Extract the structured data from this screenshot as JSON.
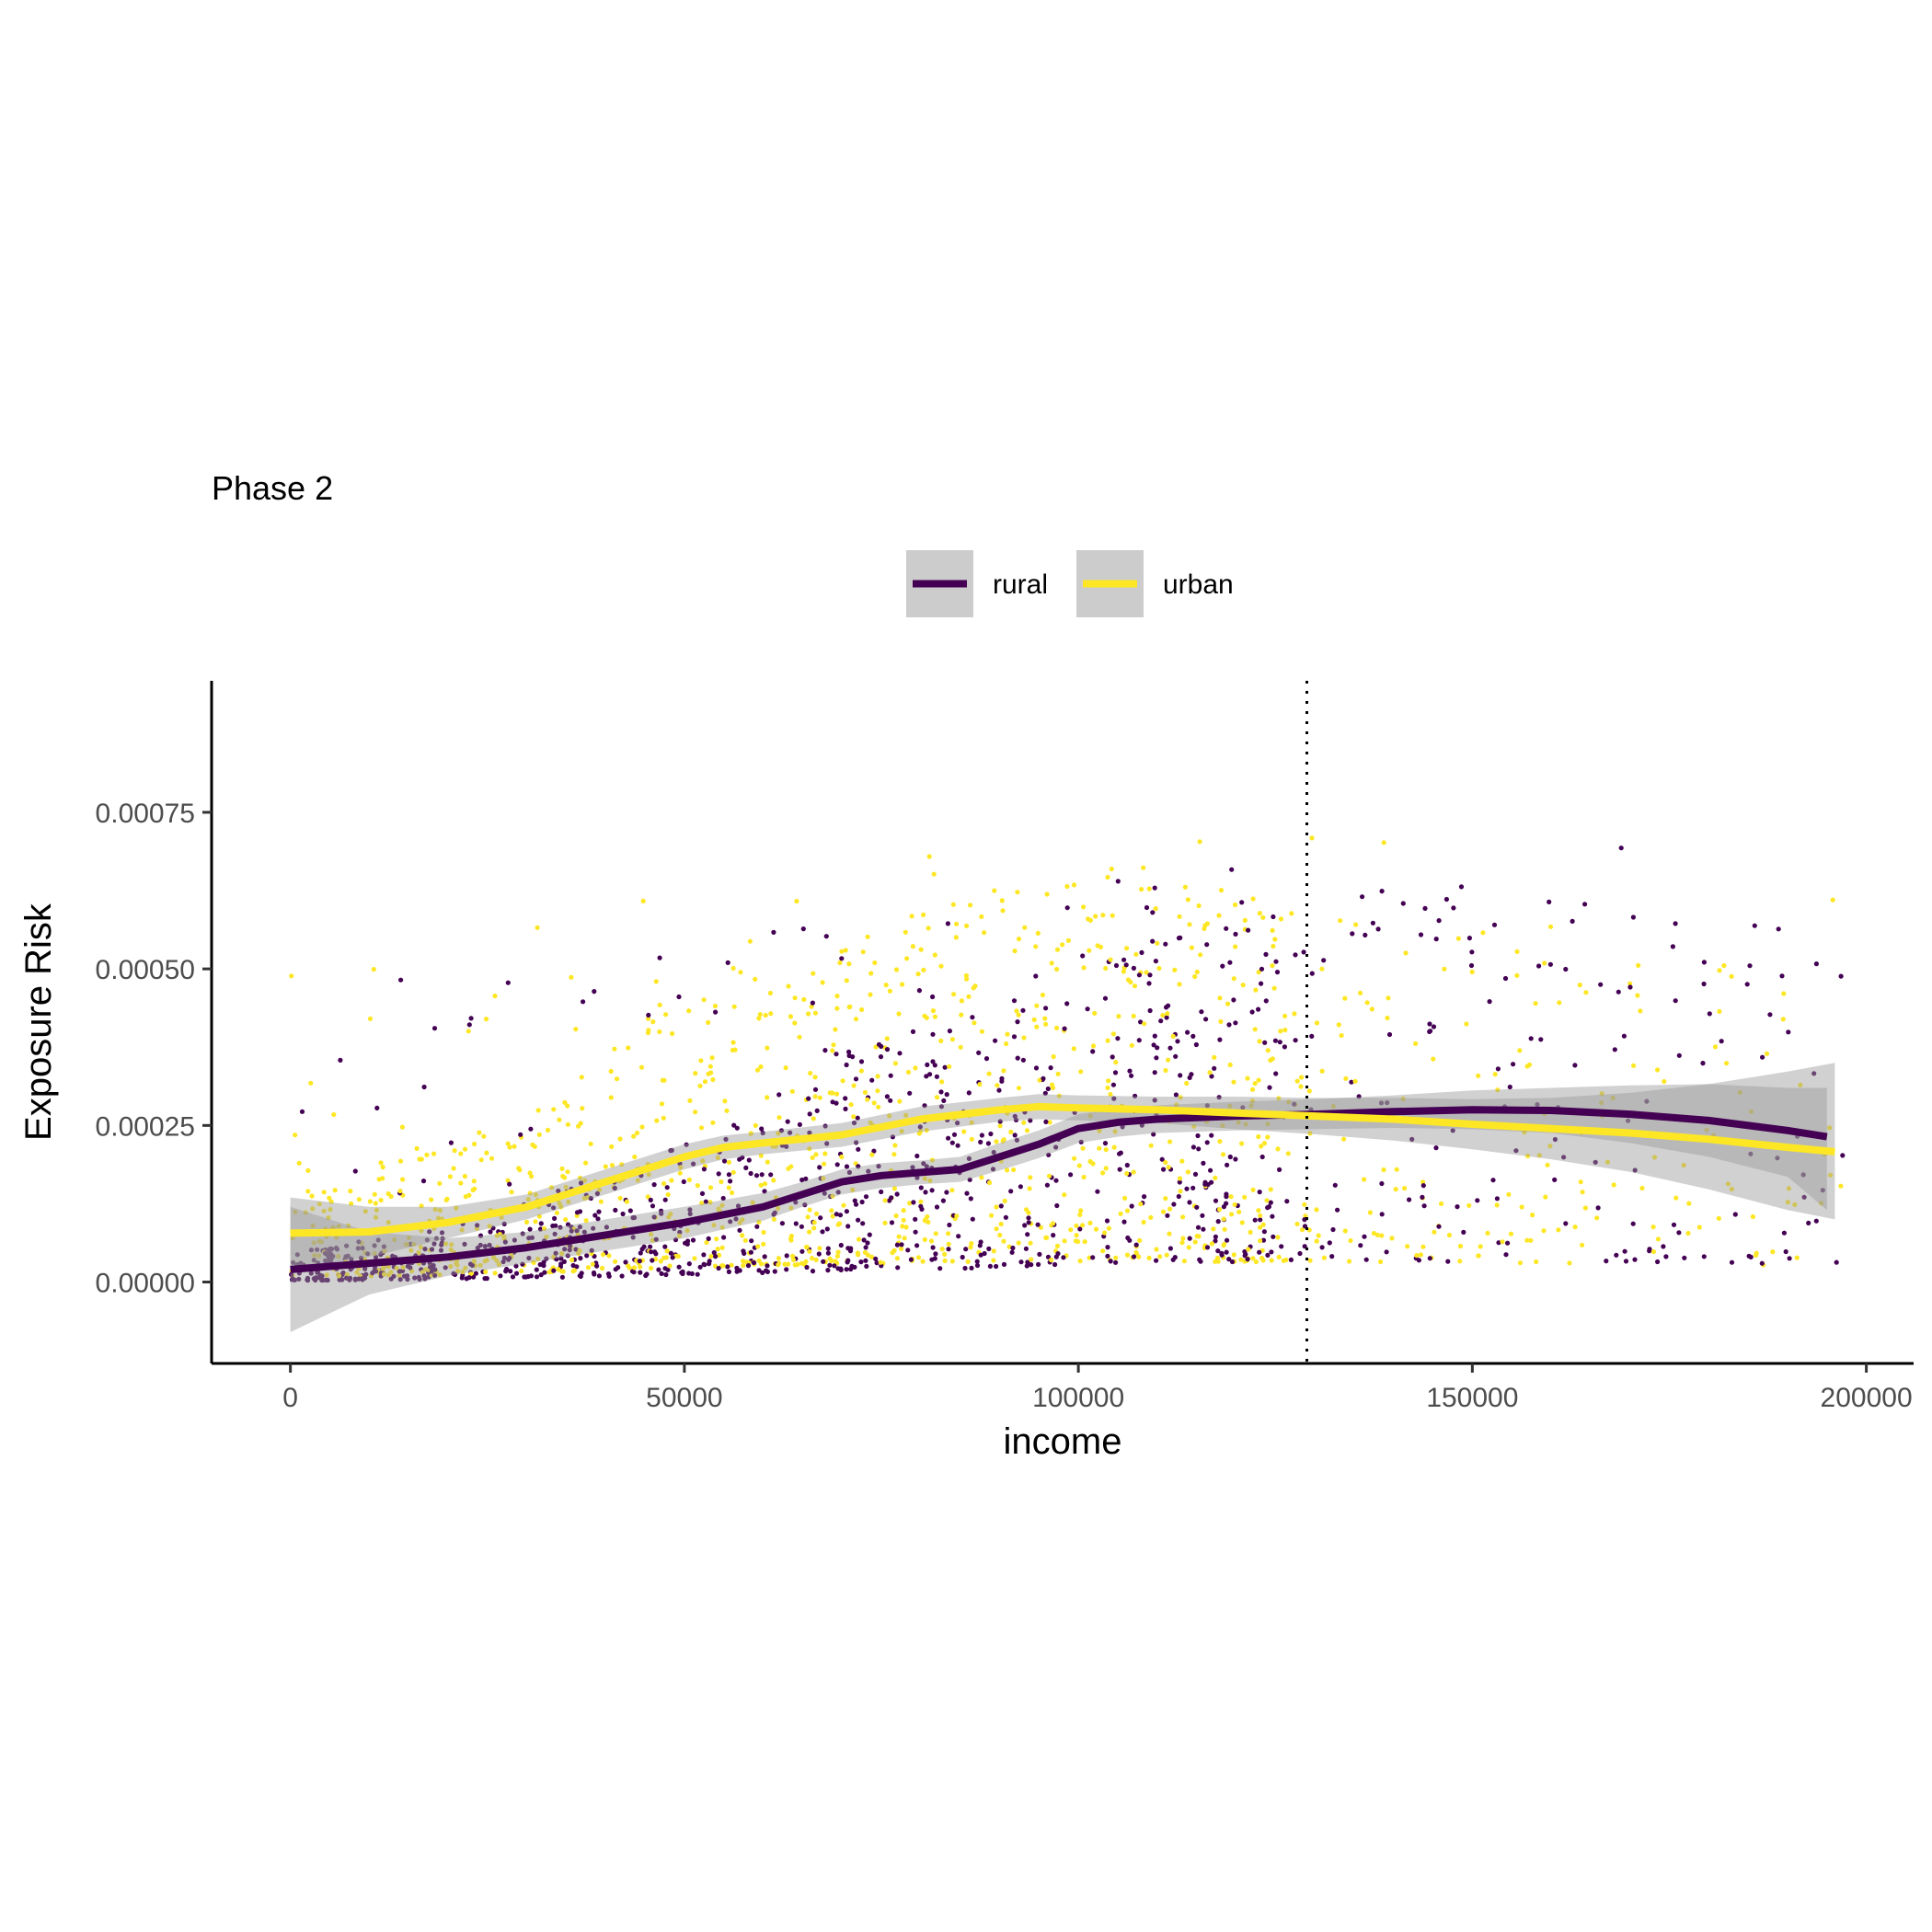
{
  "chart_data": {
    "type": "scatter",
    "title": "Phase 2",
    "xlabel": "income",
    "ylabel": "Exposure Risk",
    "xlim": [
      -10000,
      206000
    ],
    "ylim": [
      -0.00013,
      0.00096
    ],
    "x_ticks": [
      0,
      50000,
      100000,
      150000,
      200000
    ],
    "x_tick_labels": [
      "0",
      "50000",
      "100000",
      "150000",
      "200000"
    ],
    "y_ticks": [
      0,
      0.00025,
      0.0005,
      0.00075
    ],
    "y_tick_labels": [
      "0.00000",
      "0.00025",
      "0.00050",
      "0.00075"
    ],
    "vline_x": 129000,
    "grid": false,
    "legend_position": "top",
    "series": [
      {
        "name": "rural",
        "color": "#440154",
        "smooth": {
          "x": [
            0,
            10000,
            20000,
            30000,
            40000,
            50000,
            60000,
            65000,
            70000,
            75000,
            80000,
            85000,
            90000,
            95000,
            100000,
            105000,
            110000,
            120000,
            130000,
            140000,
            150000,
            160000,
            170000,
            180000,
            190000,
            195000
          ],
          "y": [
            2e-05,
            3e-05,
            4e-05,
            5.5e-05,
            7.5e-05,
            9.5e-05,
            0.00012,
            0.00014,
            0.00016,
            0.00017,
            0.000175,
            0.00018,
            0.0002,
            0.00022,
            0.000245,
            0.000255,
            0.00026,
            0.000265,
            0.000268,
            0.000272,
            0.000275,
            0.000274,
            0.000268,
            0.000258,
            0.000242,
            0.000232
          ],
          "lower": [
            -8e-05,
            -2e-05,
            1e-05,
            3e-05,
            5e-05,
            7e-05,
            9.8e-05,
            0.00012,
            0.00014,
            0.00015,
            0.000156,
            0.00016,
            0.000178,
            0.000198,
            0.000222,
            0.000232,
            0.000238,
            0.000242,
            0.000244,
            0.000246,
            0.000244,
            0.000238,
            0.000222,
            0.0002,
            0.000168,
            0.000115
          ],
          "upper": [
            0.00012,
            8e-05,
            7e-05,
            8e-05,
            0.0001,
            0.00012,
            0.000142,
            0.00016,
            0.00018,
            0.00019,
            0.000194,
            0.0002,
            0.000222,
            0.000242,
            0.000268,
            0.000278,
            0.000282,
            0.000288,
            0.000292,
            0.000298,
            0.000306,
            0.00031,
            0.000314,
            0.000316,
            0.00031,
            0.00031
          ]
        }
      },
      {
        "name": "urban",
        "color": "#fde725",
        "smooth": {
          "x": [
            0,
            10000,
            20000,
            30000,
            40000,
            50000,
            55000,
            60000,
            70000,
            80000,
            90000,
            95000,
            100000,
            110000,
            120000,
            130000,
            140000,
            150000,
            160000,
            170000,
            180000,
            190000,
            196000
          ],
          "y": [
            7.8e-05,
            8e-05,
            9.5e-05,
            0.00012,
            0.00016,
            0.0002,
            0.000215,
            0.000222,
            0.000235,
            0.00026,
            0.000275,
            0.00028,
            0.000278,
            0.000275,
            0.00027,
            0.000265,
            0.00026,
            0.000252,
            0.000245,
            0.000238,
            0.000228,
            0.000215,
            0.000208
          ],
          "lower": [
            2e-05,
            4e-05,
            7e-05,
            0.0001,
            0.00014,
            0.00018,
            0.000196,
            0.000204,
            0.000216,
            0.00024,
            0.000256,
            0.00026,
            0.000258,
            0.000254,
            0.000244,
            0.000236,
            0.000226,
            0.000212,
            0.000196,
            0.000176,
            0.000148,
            0.000115,
            0.0001
          ],
          "upper": [
            0.000135,
            0.00012,
            0.00012,
            0.00014,
            0.00018,
            0.00022,
            0.000234,
            0.00024,
            0.000254,
            0.00028,
            0.000294,
            0.0003,
            0.000298,
            0.000296,
            0.000296,
            0.000294,
            0.000294,
            0.000292,
            0.000294,
            0.000302,
            0.000316,
            0.000336,
            0.00035
          ]
        }
      }
    ]
  }
}
